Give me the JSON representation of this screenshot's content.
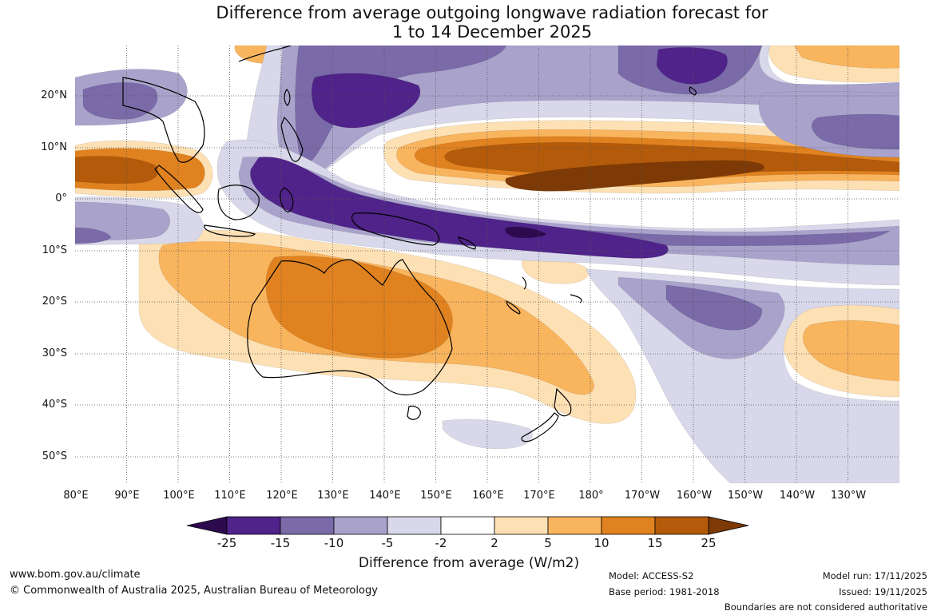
{
  "title": {
    "line1": "Difference from average outgoing longwave radiation forecast for",
    "line2": "1 to 14 December 2025"
  },
  "map": {
    "lat_labels": [
      "20°N",
      "10°N",
      "0°",
      "10°S",
      "20°S",
      "30°S",
      "40°S",
      "50°S"
    ],
    "lon_labels": [
      "80°E",
      "90°E",
      "100°E",
      "110°E",
      "120°E",
      "130°E",
      "140°E",
      "150°E",
      "160°E",
      "170°E",
      "180°",
      "170°W",
      "160°W",
      "150°W",
      "140°W",
      "130°W"
    ],
    "colors": {
      "neg25": "#2d0a4e",
      "neg15": "#4f2389",
      "neg10": "#7a6aa8",
      "neg5": "#a9a3cc",
      "neg2": "#d8d8ea",
      "neutral": "#ffffff",
      "pos2": "#fde0b3",
      "pos5": "#f9b45e",
      "pos10": "#e0821f",
      "pos15": "#b35a0b",
      "pos25": "#7d3a06"
    }
  },
  "colorbar": {
    "ticks": [
      "-25",
      "-15",
      "-10",
      "-5",
      "-2",
      "2",
      "5",
      "10",
      "15",
      "25"
    ],
    "label": "Difference from average (W/m2)",
    "colors": [
      "#2d0a4e",
      "#4f2389",
      "#7a6aa8",
      "#a9a3cc",
      "#d8d8ea",
      "#ffffff",
      "#fde0b3",
      "#f9b45e",
      "#e0821f",
      "#b35a0b",
      "#7d3a06"
    ]
  },
  "footer": {
    "url": "www.bom.gov.au/climate",
    "copyright": "© Commonwealth of Australia 2025, Australian Bureau of Meteorology",
    "model": "Model: ACCESS-S2",
    "base_period": "Base period: 1981-2018",
    "model_run": "Model run: 17/11/2025",
    "issued": "Issued: 19/11/2025",
    "disclaimer": "Boundaries are not considered authoritative"
  }
}
